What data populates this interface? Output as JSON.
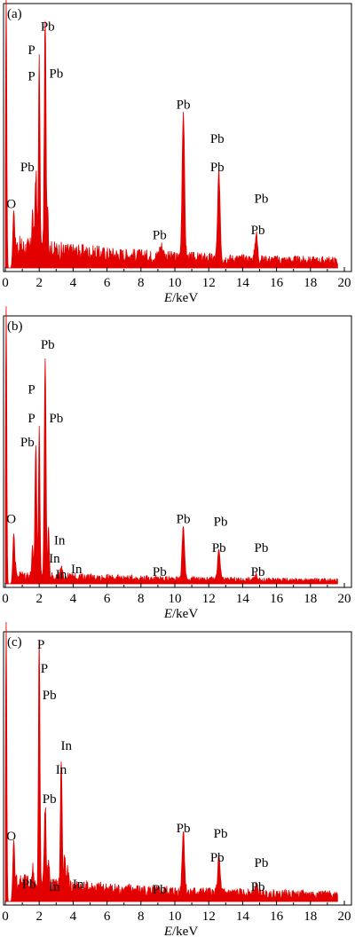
{
  "chart_data": [
    {
      "type": "area",
      "panel_label": "(a)",
      "xlabel_italic": "E",
      "xlabel_unit": "/keV",
      "xlim": [
        0,
        20
      ],
      "ticks": [
        "0",
        "2",
        "4",
        "6",
        "8",
        "10",
        "12",
        "14",
        "16",
        "18",
        "20"
      ],
      "color": "#e30000",
      "peaks": [
        {
          "x": 0.05,
          "h": 1.05,
          "w": 0.05
        },
        {
          "x": 0.5,
          "h": 0.22,
          "w": 0.08
        },
        {
          "x": 1.6,
          "h": 0.14,
          "w": 0.06
        },
        {
          "x": 1.8,
          "h": 0.3,
          "w": 0.07
        },
        {
          "x": 2.0,
          "h": 0.72,
          "w": 0.06
        },
        {
          "x": 2.35,
          "h": 0.88,
          "w": 0.07
        },
        {
          "x": 2.5,
          "h": 0.18,
          "w": 0.05
        },
        {
          "x": 10.5,
          "h": 0.56,
          "w": 0.1
        },
        {
          "x": 12.6,
          "h": 0.33,
          "w": 0.1
        },
        {
          "x": 14.8,
          "h": 0.1,
          "w": 0.1
        },
        {
          "x": 9.2,
          "h": 0.04,
          "w": 0.15
        }
      ],
      "noise": [
        0.05,
        0.02
      ],
      "annotations": [
        {
          "text": "O",
          "x": 0.35,
          "y": 0.23
        },
        {
          "text": "Pb",
          "x": 1.3,
          "y": 0.37
        },
        {
          "text": "P",
          "x": 1.55,
          "y": 0.82
        },
        {
          "text": "P",
          "x": 1.55,
          "y": 0.72
        },
        {
          "text": "Pb",
          "x": 2.5,
          "y": 0.91
        },
        {
          "text": "Pb",
          "x": 3.0,
          "y": 0.73
        },
        {
          "text": "Pb",
          "x": 9.1,
          "y": 0.11
        },
        {
          "text": "Pb",
          "x": 10.5,
          "y": 0.61
        },
        {
          "text": "Pb",
          "x": 12.5,
          "y": 0.48
        },
        {
          "text": "Pb",
          "x": 12.5,
          "y": 0.37
        },
        {
          "text": "Pb",
          "x": 15.1,
          "y": 0.25
        },
        {
          "text": "Pb",
          "x": 14.9,
          "y": 0.13
        }
      ]
    },
    {
      "type": "area",
      "panel_label": "(b)",
      "xlabel_italic": "E",
      "xlabel_unit": "/keV",
      "xlim": [
        0,
        20
      ],
      "ticks": [
        "0",
        "2",
        "4",
        "6",
        "8",
        "10",
        "12",
        "14",
        "16",
        "18",
        "20"
      ],
      "color": "#e30000",
      "peaks": [
        {
          "x": 0.05,
          "h": 1.05,
          "w": 0.05
        },
        {
          "x": 0.5,
          "h": 0.19,
          "w": 0.08
        },
        {
          "x": 1.6,
          "h": 0.1,
          "w": 0.06
        },
        {
          "x": 1.8,
          "h": 0.5,
          "w": 0.07
        },
        {
          "x": 2.0,
          "h": 0.55,
          "w": 0.06
        },
        {
          "x": 2.35,
          "h": 0.83,
          "w": 0.07
        },
        {
          "x": 2.55,
          "h": 0.2,
          "w": 0.05
        },
        {
          "x": 3.3,
          "h": 0.03,
          "w": 0.07
        },
        {
          "x": 10.5,
          "h": 0.2,
          "w": 0.1
        },
        {
          "x": 12.6,
          "h": 0.11,
          "w": 0.1
        },
        {
          "x": 14.8,
          "h": 0.02,
          "w": 0.1
        }
      ],
      "noise": [
        0.02,
        0.01
      ],
      "annotations": [
        {
          "text": "O",
          "x": 0.35,
          "y": 0.23
        },
        {
          "text": "Pb",
          "x": 1.3,
          "y": 0.52
        },
        {
          "text": "P",
          "x": 1.55,
          "y": 0.72
        },
        {
          "text": "P",
          "x": 1.55,
          "y": 0.61
        },
        {
          "text": "Pb",
          "x": 2.5,
          "y": 0.89
        },
        {
          "text": "Pb",
          "x": 3.0,
          "y": 0.61
        },
        {
          "text": "In",
          "x": 3.2,
          "y": 0.15
        },
        {
          "text": "In",
          "x": 2.9,
          "y": 0.08
        },
        {
          "text": "In",
          "x": 3.3,
          "y": 0.02
        },
        {
          "text": "In",
          "x": 4.2,
          "y": 0.04
        },
        {
          "text": "Pb",
          "x": 9.1,
          "y": 0.03
        },
        {
          "text": "Pb",
          "x": 10.5,
          "y": 0.23
        },
        {
          "text": "Pb",
          "x": 12.7,
          "y": 0.22
        },
        {
          "text": "Pb",
          "x": 12.6,
          "y": 0.12
        },
        {
          "text": "Pb",
          "x": 15.1,
          "y": 0.12
        },
        {
          "text": "Pb",
          "x": 14.9,
          "y": 0.03
        }
      ]
    },
    {
      "type": "area",
      "panel_label": "(c)",
      "xlabel_italic": "E",
      "xlabel_unit": "/keV",
      "xlim": [
        0,
        20
      ],
      "ticks": [
        "0",
        "2",
        "4",
        "6",
        "8",
        "10",
        "12",
        "14",
        "16",
        "18",
        "20"
      ],
      "color": "#e30000",
      "peaks": [
        {
          "x": 0.05,
          "h": 1.05,
          "w": 0.05
        },
        {
          "x": 0.5,
          "h": 0.23,
          "w": 0.08
        },
        {
          "x": 1.6,
          "h": 0.07,
          "w": 0.06
        },
        {
          "x": 2.0,
          "h": 0.95,
          "w": 0.06
        },
        {
          "x": 2.35,
          "h": 0.3,
          "w": 0.07
        },
        {
          "x": 2.55,
          "h": 0.12,
          "w": 0.05
        },
        {
          "x": 3.3,
          "h": 0.48,
          "w": 0.07
        },
        {
          "x": 3.5,
          "h": 0.1,
          "w": 0.07
        },
        {
          "x": 3.7,
          "h": 0.06,
          "w": 0.07
        },
        {
          "x": 10.5,
          "h": 0.23,
          "w": 0.1
        },
        {
          "x": 12.6,
          "h": 0.13,
          "w": 0.1
        },
        {
          "x": 14.8,
          "h": 0.03,
          "w": 0.1
        }
      ],
      "noise": [
        0.04,
        0.02
      ],
      "annotations": [
        {
          "text": "O",
          "x": 0.35,
          "y": 0.23
        },
        {
          "text": "Pb",
          "x": 1.4,
          "y": 0.05
        },
        {
          "text": "P",
          "x": 2.1,
          "y": 0.95
        },
        {
          "text": "P",
          "x": 2.3,
          "y": 0.86
        },
        {
          "text": "Pb",
          "x": 2.6,
          "y": 0.76
        },
        {
          "text": "In",
          "x": 3.6,
          "y": 0.57
        },
        {
          "text": "In",
          "x": 3.3,
          "y": 0.48
        },
        {
          "text": "Pb",
          "x": 2.6,
          "y": 0.37
        },
        {
          "text": "In",
          "x": 2.9,
          "y": 0.04
        },
        {
          "text": "In",
          "x": 4.3,
          "y": 0.05
        },
        {
          "text": "Pb",
          "x": 9.1,
          "y": 0.03
        },
        {
          "text": "Pb",
          "x": 10.5,
          "y": 0.26
        },
        {
          "text": "Pb",
          "x": 12.7,
          "y": 0.24
        },
        {
          "text": "Pb",
          "x": 12.5,
          "y": 0.15
        },
        {
          "text": "Pb",
          "x": 15.1,
          "y": 0.13
        },
        {
          "text": "Pb",
          "x": 14.9,
          "y": 0.04
        }
      ]
    }
  ]
}
